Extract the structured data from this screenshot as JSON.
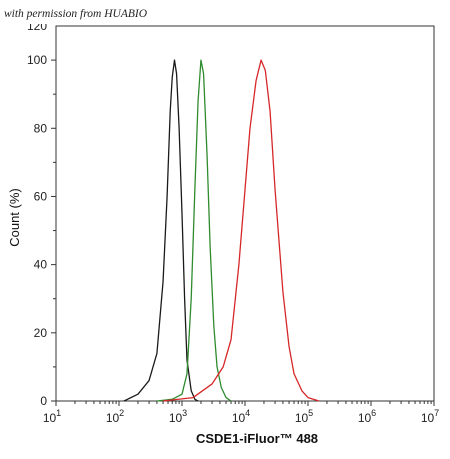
{
  "watermark": "with permission from HUABIO",
  "chart_data": {
    "type": "line",
    "title": "",
    "xlabel": "CSDE1-iFluor™ 488",
    "ylabel": "Count  (%)",
    "xscale": "log",
    "xlim": [
      10,
      10000000
    ],
    "ylim": [
      0,
      110
    ],
    "x_ticks": [
      10,
      100,
      1000,
      10000,
      100000,
      1000000,
      10000000
    ],
    "x_tick_labels": [
      "10",
      "10",
      "10",
      "10",
      "10",
      "10",
      "10"
    ],
    "x_tick_exponents": [
      "1",
      "2",
      "3",
      "4",
      "5",
      "6",
      "7"
    ],
    "y_ticks": [
      0,
      20,
      40,
      60,
      80,
      100
    ],
    "y_tick_labels": [
      "0",
      "20",
      "40",
      "60",
      "80",
      "100"
    ],
    "y_top_partial_label": "120",
    "grid": false,
    "legend": "none",
    "series": [
      {
        "color": "#1a1a1a",
        "points": [
          [
            120,
            0
          ],
          [
            200,
            2
          ],
          [
            300,
            6
          ],
          [
            400,
            14
          ],
          [
            500,
            35
          ],
          [
            580,
            60
          ],
          [
            650,
            85
          ],
          [
            700,
            95
          ],
          [
            760,
            100
          ],
          [
            820,
            96
          ],
          [
            900,
            80
          ],
          [
            1000,
            55
          ],
          [
            1100,
            30
          ],
          [
            1200,
            12
          ],
          [
            1400,
            3
          ],
          [
            1600,
            0.5
          ],
          [
            1800,
            0
          ]
        ]
      },
      {
        "color": "#2e8b2e",
        "points": [
          [
            400,
            0
          ],
          [
            700,
            0.5
          ],
          [
            1000,
            2
          ],
          [
            1200,
            8
          ],
          [
            1400,
            30
          ],
          [
            1600,
            62
          ],
          [
            1800,
            88
          ],
          [
            2000,
            100
          ],
          [
            2200,
            96
          ],
          [
            2500,
            72
          ],
          [
            2800,
            45
          ],
          [
            3200,
            22
          ],
          [
            3600,
            10
          ],
          [
            4200,
            4
          ],
          [
            5000,
            1
          ],
          [
            6000,
            0
          ]
        ]
      },
      {
        "color": "#d62728",
        "points": [
          [
            500,
            0
          ],
          [
            1500,
            1
          ],
          [
            3000,
            5
          ],
          [
            4500,
            10
          ],
          [
            6000,
            18
          ],
          [
            8000,
            40
          ],
          [
            10000,
            62
          ],
          [
            12000,
            80
          ],
          [
            15000,
            94
          ],
          [
            18000,
            100
          ],
          [
            21000,
            97
          ],
          [
            25000,
            85
          ],
          [
            30000,
            62
          ],
          [
            40000,
            32
          ],
          [
            50000,
            16
          ],
          [
            60000,
            8
          ],
          [
            80000,
            3
          ],
          [
            100000,
            1
          ],
          [
            150000,
            0
          ]
        ]
      }
    ]
  }
}
